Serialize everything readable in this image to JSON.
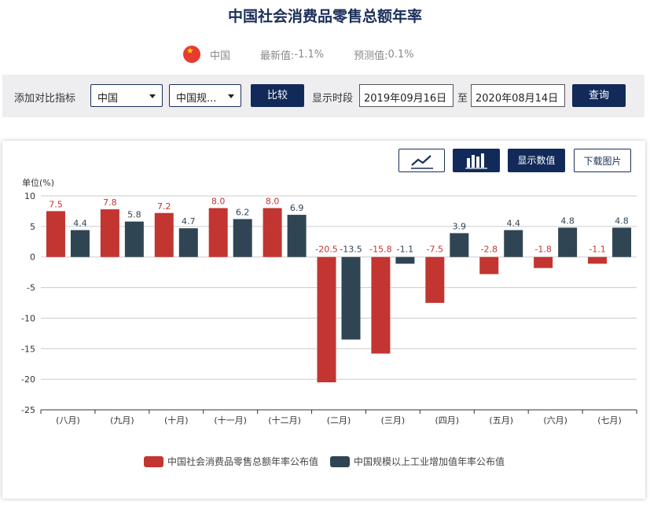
{
  "page": {
    "title": "中国社会消费品零售总额年率",
    "country": "中国",
    "latest_label": "最新值:",
    "latest_value": "-1.1%",
    "forecast_label": "预测值:",
    "forecast_value": "0.1%"
  },
  "toolbar": {
    "compare_label": "添加对比指标",
    "select_country": "中国",
    "select_indicator": "中国规...",
    "compare_button": "比较",
    "period_label": "显示时段",
    "date_from": "2019年09月16日",
    "date_sep": "至",
    "date_to": "2020年08月14日",
    "query_button": "查询"
  },
  "controls": {
    "line_icon": "line-chart-icon",
    "bar_icon": "bar-chart-icon",
    "show_values": "显示数值",
    "download": "下载图片"
  },
  "colors": {
    "series1": "#c23531",
    "series2": "#2f4554",
    "brand": "#122a5a"
  },
  "chart_data": {
    "type": "bar",
    "ylabel": "单位(%)",
    "ylim": [
      -25,
      10
    ],
    "yticks": [
      10,
      5,
      0,
      -5,
      -10,
      -15,
      -20,
      -25
    ],
    "grid": true,
    "legend_position": "bottom",
    "categories": [
      "(八月)",
      "(九月)",
      "(十月)",
      "(十一月)",
      "(十二月)",
      "(二月)",
      "(三月)",
      "(四月)",
      "(五月)",
      "(六月)",
      "(七月)"
    ],
    "series": [
      {
        "name": "中国社会消费品零售总额年率公布值",
        "values": [
          7.5,
          7.8,
          7.2,
          8.0,
          8.0,
          -20.5,
          -15.8,
          -7.5,
          -2.8,
          -1.8,
          -1.1
        ],
        "labels": [
          "7.5",
          "7.8",
          "7.2",
          "8.0",
          "8.0",
          "-20.5",
          "-15.8",
          "-7.5",
          "-2.8",
          "-1.8",
          "-1.1"
        ]
      },
      {
        "name": "中国规模以上工业增加值年率公布值",
        "values": [
          4.4,
          5.8,
          4.7,
          6.2,
          6.9,
          -13.5,
          -1.1,
          3.9,
          4.4,
          4.8,
          4.8
        ],
        "labels": [
          "4.4",
          "5.8",
          "4.7",
          "6.2",
          "6.9",
          "-13.5",
          "-1.1",
          "3.9",
          "4.4",
          "4.8",
          "4.8"
        ]
      }
    ]
  }
}
